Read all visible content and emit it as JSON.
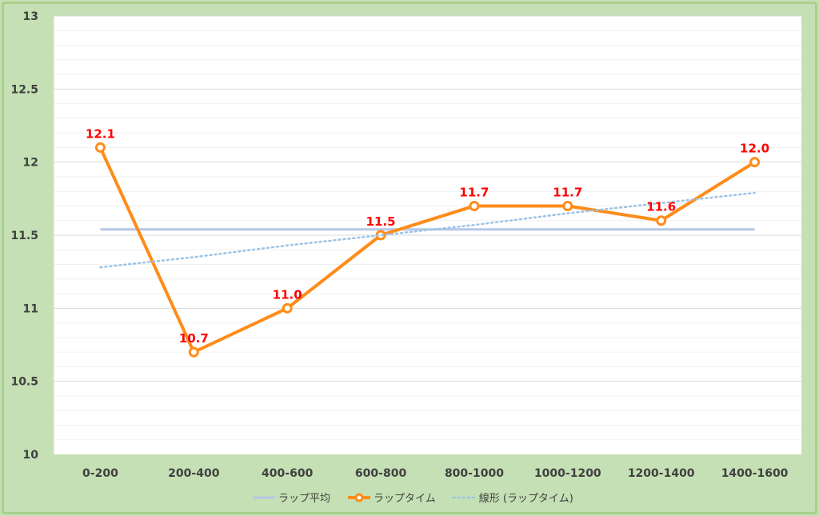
{
  "chart_data": {
    "type": "line",
    "categories": [
      "0-200",
      "200-400",
      "400-600",
      "600-800",
      "800-1000",
      "1000-1200",
      "1200-1400",
      "1400-1600"
    ],
    "ylim": [
      10,
      13
    ],
    "yticks": [
      "10",
      "10.5",
      "11",
      "11.5",
      "12",
      "12.5",
      "13"
    ],
    "grid": true,
    "series": [
      {
        "name": "ラップ平均",
        "style": "flat",
        "values": [
          11.54,
          11.54,
          11.54,
          11.54,
          11.54,
          11.54,
          11.54,
          11.54
        ],
        "color": "#b4c7e7"
      },
      {
        "name": "ラップタイム",
        "style": "marker-line",
        "values": [
          12.1,
          10.7,
          11.0,
          11.5,
          11.7,
          11.7,
          11.6,
          12.0
        ],
        "labels": [
          "12.1",
          "10.7",
          "11.0",
          "11.5",
          "11.7",
          "11.7",
          "11.6",
          "12.0"
        ],
        "color": "#ff8c1a"
      },
      {
        "name": "線形 (ラップタイム)",
        "style": "dotted",
        "values": [
          11.28,
          11.35,
          11.43,
          11.5,
          11.57,
          11.65,
          11.72,
          11.79
        ],
        "color": "#9dc3e6"
      }
    ],
    "legend_position": "bottom",
    "label_color": "#ff0000"
  }
}
